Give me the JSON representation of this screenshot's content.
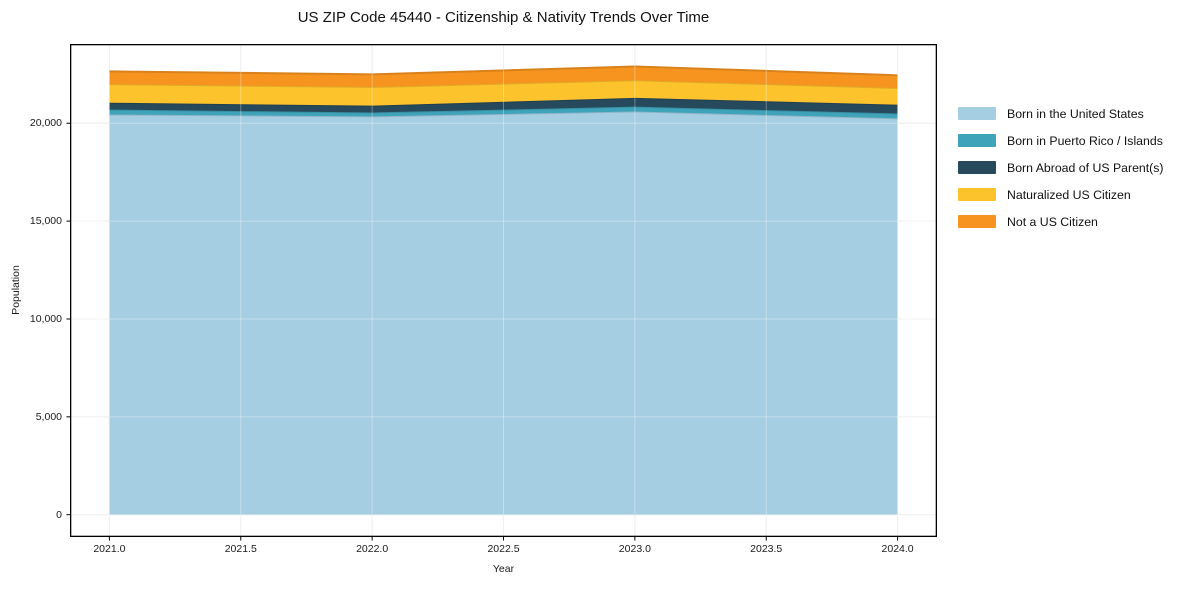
{
  "title": "US ZIP Code 45440 - Citizenship & Nativity Trends Over Time",
  "chart_data": {
    "type": "area",
    "stacked": true,
    "title": "US ZIP Code 45440 - Citizenship & Nativity Trends Over Time",
    "xlabel": "Year",
    "ylabel": "Population",
    "x": [
      2021,
      2022,
      2023,
      2024
    ],
    "series": [
      {
        "name": "Born in the United States",
        "color": "#a6cee3",
        "values": [
          20450,
          20350,
          20600,
          20250
        ]
      },
      {
        "name": "Born in Puerto Rico / Islands",
        "color": "#3fa3ba",
        "values": [
          250,
          200,
          250,
          250
        ]
      },
      {
        "name": "Born Abroad of US Parent(s)",
        "color": "#26495c",
        "values": [
          350,
          350,
          450,
          450
        ]
      },
      {
        "name": "Naturalized US Citizen",
        "color": "#fcc32d",
        "values": [
          950,
          950,
          900,
          850
        ]
      },
      {
        "name": "Not a US Citizen",
        "color": "#f7941f",
        "values": [
          650,
          650,
          700,
          650
        ]
      }
    ],
    "totals": [
      22650,
      22500,
      22900,
      22450
    ],
    "x_ticks": [
      "2021.0",
      "2021.5",
      "2022.0",
      "2022.5",
      "2023.0",
      "2023.5",
      "2024.0"
    ],
    "y_ticks": [
      "0",
      "5,000",
      "10,000",
      "15,000",
      "20,000"
    ],
    "xlim": [
      2020.85,
      2024.15
    ],
    "ylim": [
      -1140,
      24050
    ],
    "grid": true,
    "legend_position": "right-outside",
    "colors": {
      "spine": "#000000",
      "grid_under": "#e9e9e9",
      "grid_over": "rgba(255,255,255,0.32)",
      "text": "#1a1a1a"
    }
  }
}
